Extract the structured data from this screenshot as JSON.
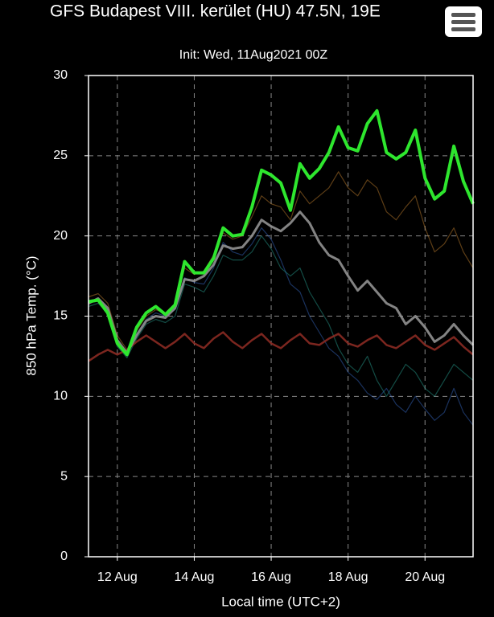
{
  "chart_data": {
    "type": "line",
    "title": "GFS Budapest VIII. kerület (HU) 47.5N, 19E",
    "subtitle": "Init: Wed, 11Aug2021 00Z",
    "x_label": "Local time (UTC+2)",
    "y_label": "850 hPa Temp. (°C)",
    "x": [
      11.25,
      11.5,
      11.75,
      12,
      12.25,
      12.5,
      12.75,
      13,
      13.25,
      13.5,
      13.75,
      14,
      14.25,
      14.5,
      14.75,
      15,
      15.25,
      15.5,
      15.75,
      16,
      16.25,
      16.5,
      16.75,
      17,
      17.25,
      17.5,
      17.75,
      18,
      18.25,
      18.5,
      18.75,
      19,
      19.25,
      19.5,
      19.75,
      20,
      20.25,
      20.5,
      20.75,
      21,
      21.25
    ],
    "xlim": [
      11.25,
      21.25
    ],
    "xticks": [
      {
        "value": 12,
        "label": "12 Aug"
      },
      {
        "value": 14,
        "label": "14 Aug"
      },
      {
        "value": 16,
        "label": "16 Aug"
      },
      {
        "value": 18,
        "label": "18 Aug"
      },
      {
        "value": 20,
        "label": "20 Aug"
      }
    ],
    "ylim": [
      0,
      30
    ],
    "yticks": [
      0,
      5,
      10,
      15,
      20,
      25,
      30
    ],
    "grid": true,
    "series": [
      {
        "color": "#3a6fd0",
        "width": 1.2,
        "opacity": 0.45,
        "values": [
          15.8,
          16.0,
          15.4,
          13.4,
          12.6,
          13.9,
          14.8,
          15.2,
          15.0,
          15.4,
          17.4,
          17.1,
          17.0,
          18.0,
          19.6,
          19.0,
          18.8,
          19.5,
          20.5,
          19.8,
          18.5,
          17.0,
          16.5,
          15.0,
          14.0,
          13.0,
          12.5,
          11.5,
          11.0,
          10.2,
          9.8,
          10.5,
          9.5,
          9.0,
          10.0,
          9.2,
          8.5,
          9.0,
          10.5,
          9.0,
          8.2
        ]
      },
      {
        "color": "#d08a30",
        "width": 1.2,
        "opacity": 0.45,
        "values": [
          16.2,
          16.4,
          15.8,
          13.8,
          12.9,
          14.1,
          15.0,
          15.4,
          15.2,
          15.8,
          18.0,
          17.6,
          17.8,
          18.8,
          20.2,
          19.8,
          20.0,
          21.2,
          22.5,
          22.0,
          21.8,
          21.0,
          22.8,
          22.0,
          22.5,
          23.0,
          24.0,
          23.0,
          22.5,
          23.5,
          23.0,
          21.5,
          21.0,
          21.8,
          22.5,
          20.5,
          19.0,
          19.5,
          20.5,
          19.0,
          18.0
        ]
      },
      {
        "color": "#2aa89a",
        "width": 1.2,
        "opacity": 0.45,
        "values": [
          15.6,
          15.8,
          15.2,
          13.1,
          12.4,
          13.6,
          14.5,
          14.8,
          14.6,
          15.0,
          17.0,
          16.8,
          16.5,
          17.5,
          18.8,
          18.5,
          18.5,
          19.0,
          20.0,
          19.2,
          18.0,
          17.5,
          18.0,
          16.5,
          15.5,
          14.5,
          13.0,
          12.0,
          11.5,
          12.5,
          11.0,
          10.0,
          11.0,
          12.0,
          11.5,
          10.5,
          10.0,
          11.0,
          12.0,
          11.5,
          11.0
        ]
      },
      {
        "color": "#8a2a22",
        "width": 2.5,
        "opacity": 0.9,
        "values": [
          12.2,
          12.6,
          12.9,
          12.6,
          12.9,
          13.4,
          13.8,
          13.4,
          13.0,
          13.4,
          13.9,
          13.3,
          13.0,
          13.6,
          14.0,
          13.4,
          13.0,
          13.5,
          13.9,
          13.3,
          13.0,
          13.5,
          13.9,
          13.3,
          13.2,
          13.6,
          13.9,
          13.3,
          13.1,
          13.5,
          13.8,
          13.2,
          13.0,
          13.4,
          13.8,
          13.2,
          12.9,
          13.3,
          13.7,
          13.1,
          12.6
        ]
      },
      {
        "color": "#9a9a9a",
        "width": 3,
        "opacity": 0.85,
        "values": [
          15.8,
          16.1,
          15.5,
          13.5,
          12.7,
          13.8,
          14.7,
          15.0,
          14.9,
          15.5,
          17.3,
          17.2,
          17.5,
          18.2,
          19.4,
          19.2,
          19.3,
          20.0,
          21.0,
          20.6,
          20.3,
          20.8,
          21.5,
          20.8,
          19.6,
          18.8,
          18.5,
          17.5,
          16.6,
          17.2,
          16.5,
          15.8,
          15.5,
          14.5,
          15.0,
          14.3,
          13.4,
          13.8,
          14.5,
          13.8,
          13.2
        ]
      },
      {
        "color": "#2ee62e",
        "width": 4,
        "opacity": 1,
        "values": [
          15.9,
          16.0,
          15.2,
          13.3,
          12.6,
          14.3,
          15.2,
          15.6,
          15.1,
          15.7,
          18.4,
          17.7,
          17.7,
          18.6,
          20.5,
          20.0,
          20.1,
          21.8,
          24.1,
          23.8,
          23.3,
          21.6,
          24.5,
          23.6,
          24.2,
          25.2,
          26.8,
          25.5,
          25.3,
          27.0,
          27.8,
          25.2,
          24.8,
          25.2,
          26.6,
          23.6,
          22.3,
          22.8,
          25.6,
          23.4,
          22.0
        ]
      }
    ]
  }
}
